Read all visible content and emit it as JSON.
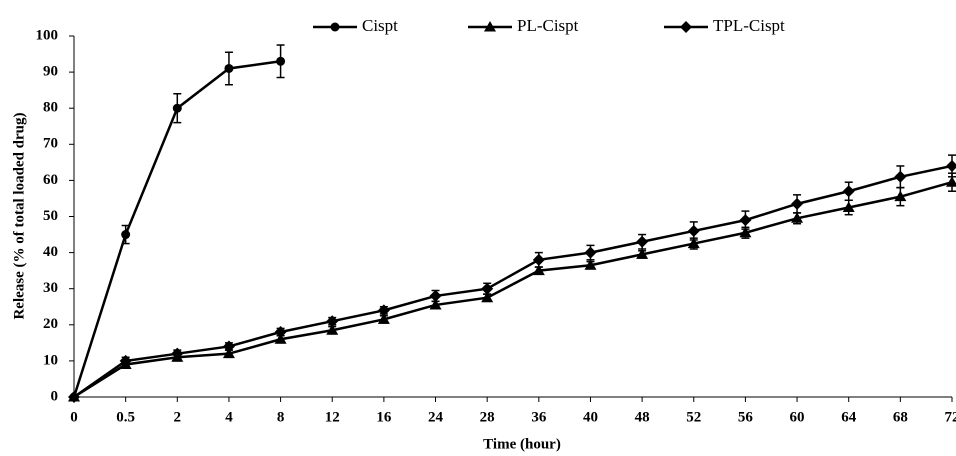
{
  "chart_data": {
    "type": "line",
    "x_label": "Time (hour)",
    "y_label": "Release (% of total loaded drug)",
    "categories": [
      "0",
      "0.5",
      "2",
      "4",
      "8",
      "12",
      "16",
      "24",
      "28",
      "36",
      "40",
      "48",
      "52",
      "56",
      "60",
      "64",
      "68",
      "72"
    ],
    "series": [
      {
        "name": "Cispt",
        "color": "#000000",
        "marker": "circle",
        "values": [
          0,
          45,
          80,
          91,
          93,
          null,
          null,
          null,
          null,
          null,
          null,
          null,
          null,
          null,
          null,
          null,
          null,
          null
        ],
        "errors": [
          0,
          2.5,
          4,
          4.5,
          4.5,
          null,
          null,
          null,
          null,
          null,
          null,
          null,
          null,
          null,
          null,
          null,
          null,
          null
        ]
      },
      {
        "name": "PL-Cispt",
        "color": "#000000",
        "marker": "triangle",
        "values": [
          0,
          9,
          11,
          12,
          16,
          18.5,
          21.5,
          25.5,
          27.5,
          35,
          36.5,
          39.5,
          42.5,
          45.5,
          49.5,
          52.5,
          55.5,
          59.5
        ],
        "errors": [
          0,
          1,
          1,
          1,
          1,
          1,
          1,
          1,
          1,
          1,
          1,
          1,
          1.5,
          1.5,
          1.5,
          2,
          2.5,
          2.5
        ]
      },
      {
        "name": "TPL-Cispt",
        "color": "#000000",
        "marker": "diamond",
        "values": [
          0,
          10,
          12,
          14,
          18,
          21,
          24,
          28,
          30,
          38,
          40,
          43,
          46,
          49,
          53.5,
          57,
          61,
          64
        ],
        "errors": [
          0,
          1,
          1,
          1,
          1,
          1,
          1,
          1.5,
          1.5,
          2,
          2,
          2,
          2.5,
          2.5,
          2.5,
          2.5,
          3,
          3
        ]
      }
    ],
    "ylim": [
      0,
      100
    ],
    "yticks": [
      0,
      10,
      20,
      30,
      40,
      50,
      60,
      70,
      80,
      90,
      100
    ],
    "grid": false,
    "legend": "top"
  }
}
